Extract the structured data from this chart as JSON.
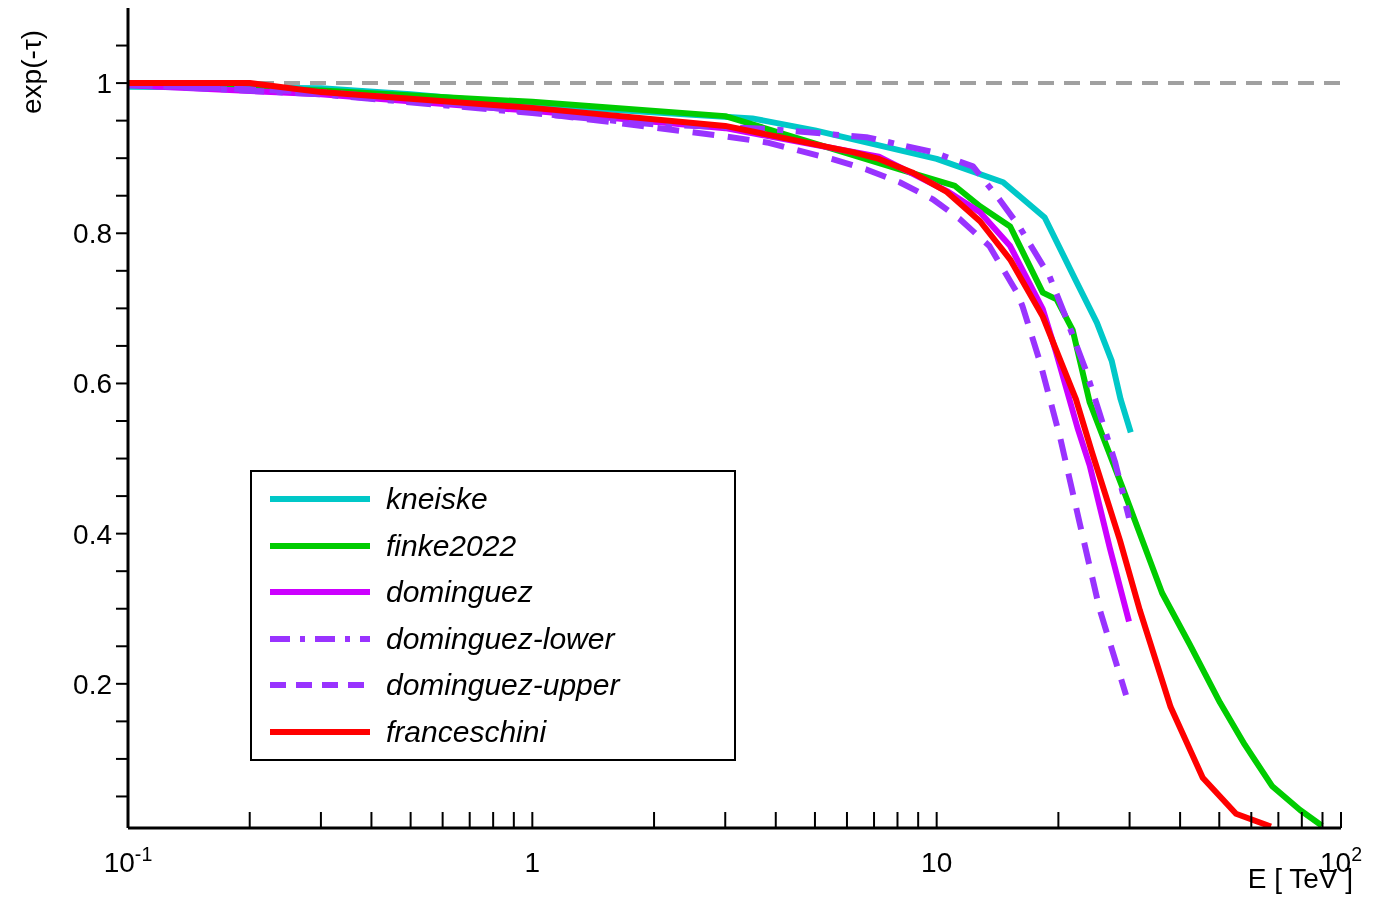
{
  "chart_data": {
    "type": "line",
    "xlabel": "E [ TeV ]",
    "ylabel": "exp(-τ)",
    "log": "x",
    "xlim": [
      0.1,
      100
    ],
    "ylim": [
      0.008,
      1.1
    ],
    "xticks": [
      {
        "value": 0.1,
        "label": "10$^{-1}$"
      },
      {
        "value": 0.2,
        "label": null
      },
      {
        "value": 0.3,
        "label": null
      },
      {
        "value": 0.4,
        "label": null
      },
      {
        "value": 0.5,
        "label": null
      },
      {
        "value": 0.6,
        "label": null
      },
      {
        "value": 0.7,
        "label": null
      },
      {
        "value": 0.8,
        "label": null
      },
      {
        "value": 0.9,
        "label": null
      },
      1,
      {
        "value": 2,
        "label": null
      },
      {
        "value": 3,
        "label": null
      },
      {
        "value": 4,
        "label": null
      },
      {
        "value": 5,
        "label": null
      },
      {
        "value": 6,
        "label": null
      },
      {
        "value": 7,
        "label": null
      },
      {
        "value": 8,
        "label": null
      },
      {
        "value": 9,
        "label": null
      },
      10,
      {
        "value": 20,
        "label": null
      },
      {
        "value": 30,
        "label": null
      },
      {
        "value": 40,
        "label": null
      },
      {
        "value": 50,
        "label": null
      },
      {
        "value": 60,
        "label": null
      },
      {
        "value": 70,
        "label": null
      },
      {
        "value": 80,
        "label": null
      },
      {
        "value": 90,
        "label": null
      },
      {
        "value": 100,
        "label": "10$^{2}$"
      }
    ],
    "yticks": [
      {
        "value": 0.05,
        "label": null
      },
      {
        "value": 0.1,
        "label": null
      },
      {
        "value": 0.15,
        "label": null
      },
      0.2,
      {
        "value": 0.25,
        "label": null
      },
      {
        "value": 0.3,
        "label": null
      },
      {
        "value": 0.35,
        "label": null
      },
      0.4,
      {
        "value": 0.45,
        "label": null
      },
      {
        "value": 0.5,
        "label": null
      },
      {
        "value": 0.55,
        "label": null
      },
      0.6,
      {
        "value": 0.65,
        "label": null
      },
      {
        "value": 0.7,
        "label": null
      },
      {
        "value": 0.75,
        "label": null
      },
      0.8,
      {
        "value": 0.85,
        "label": null
      },
      {
        "value": 0.9,
        "label": null
      },
      {
        "value": 0.95,
        "label": null
      },
      1,
      {
        "value": 1.05,
        "label": null
      }
    ],
    "grid": false,
    "legend": "bottom left",
    "marker": "none",
    "ref_lines": [
      {
        "axis": "y",
        "value": 1,
        "color": "#a0a0a0",
        "line_style": "dashed"
      }
    ],
    "series": [
      {
        "name": "kneiske",
        "color": "#00c8c8",
        "line_style": "solid",
        "x": [
          0.1,
          0.3,
          0.5,
          1,
          3.5,
          5,
          10,
          14.6,
          18.5,
          22.0,
          24.9,
          27.1,
          28.5,
          30.2
        ],
        "values": [
          0.995,
          0.993,
          0.985,
          0.971,
          0.953,
          0.937,
          0.899,
          0.868,
          0.821,
          0.739,
          0.681,
          0.63,
          0.579,
          0.535
        ]
      },
      {
        "name": "finke2022",
        "color": "#00cc00",
        "line_style": "solid",
        "x": [
          0.1,
          0.3,
          1,
          3,
          8.1,
          11.1,
          12.8,
          15.2,
          18.3,
          19.8,
          21.7,
          23.9,
          28.7,
          36.1,
          42.3,
          50.2,
          57.8,
          67.5,
          79.2,
          89.7
        ],
        "values": [
          0.998,
          0.99,
          0.975,
          0.956,
          0.885,
          0.863,
          0.836,
          0.809,
          0.721,
          0.712,
          0.671,
          0.575,
          0.464,
          0.321,
          0.252,
          0.175,
          0.119,
          0.064,
          0.032,
          0.011
        ]
      },
      {
        "name": "dominguez",
        "color": "#cc00ff",
        "line_style": "solid",
        "x": [
          0.1,
          0.3,
          1,
          3,
          7.2,
          10.7,
          12.8,
          15.2,
          18.3,
          19.7,
          22.3,
          23.9,
          26.8,
          29.9
        ],
        "values": [
          0.997,
          0.985,
          0.963,
          0.94,
          0.902,
          0.855,
          0.828,
          0.783,
          0.699,
          0.643,
          0.541,
          0.491,
          0.381,
          0.283
        ]
      },
      {
        "name": "dominguez-lower",
        "color": "#9933ff",
        "line_style": "dashdot",
        "x": [
          0.1,
          0.3,
          1,
          2,
          3.8,
          6.7,
          9.8,
          12.3,
          14.3,
          16.0,
          19.0,
          20.7,
          23.3,
          25.3,
          27.6,
          29.9
        ],
        "values": [
          0.998,
          0.985,
          0.96,
          0.945,
          0.939,
          0.928,
          0.908,
          0.889,
          0.845,
          0.809,
          0.743,
          0.693,
          0.62,
          0.56,
          0.496,
          0.421
        ]
      },
      {
        "name": "dominguez-upper",
        "color": "#9933ff",
        "line_style": "dashed",
        "x": [
          0.1,
          0.3,
          0.5,
          1,
          3,
          3.8,
          5.5,
          6.7,
          8.1,
          9.8,
          11.4,
          13.5,
          15.8,
          16.3,
          18.0,
          20.2,
          22.6,
          25.3,
          29.4
        ],
        "values": [
          0.998,
          0.988,
          0.979,
          0.961,
          0.929,
          0.921,
          0.899,
          0.885,
          0.868,
          0.845,
          0.819,
          0.783,
          0.721,
          0.703,
          0.629,
          0.528,
          0.413,
          0.299,
          0.185
        ]
      },
      {
        "name": "franceschini",
        "color": "#ff0000",
        "line_style": "solid",
        "x": [
          0.1,
          0.2,
          0.3,
          1,
          3,
          6.2,
          7.2,
          8.7,
          10.6,
          12.8,
          15.2,
          18.3,
          22.1,
          24.2,
          28.4,
          31.8,
          37.9,
          45.5,
          55.0,
          67.1
        ],
        "values": [
          1.0,
          1.0,
          0.988,
          0.967,
          0.943,
          0.908,
          0.899,
          0.881,
          0.855,
          0.816,
          0.765,
          0.689,
          0.579,
          0.509,
          0.391,
          0.298,
          0.169,
          0.075,
          0.027,
          0.01
        ]
      }
    ]
  }
}
